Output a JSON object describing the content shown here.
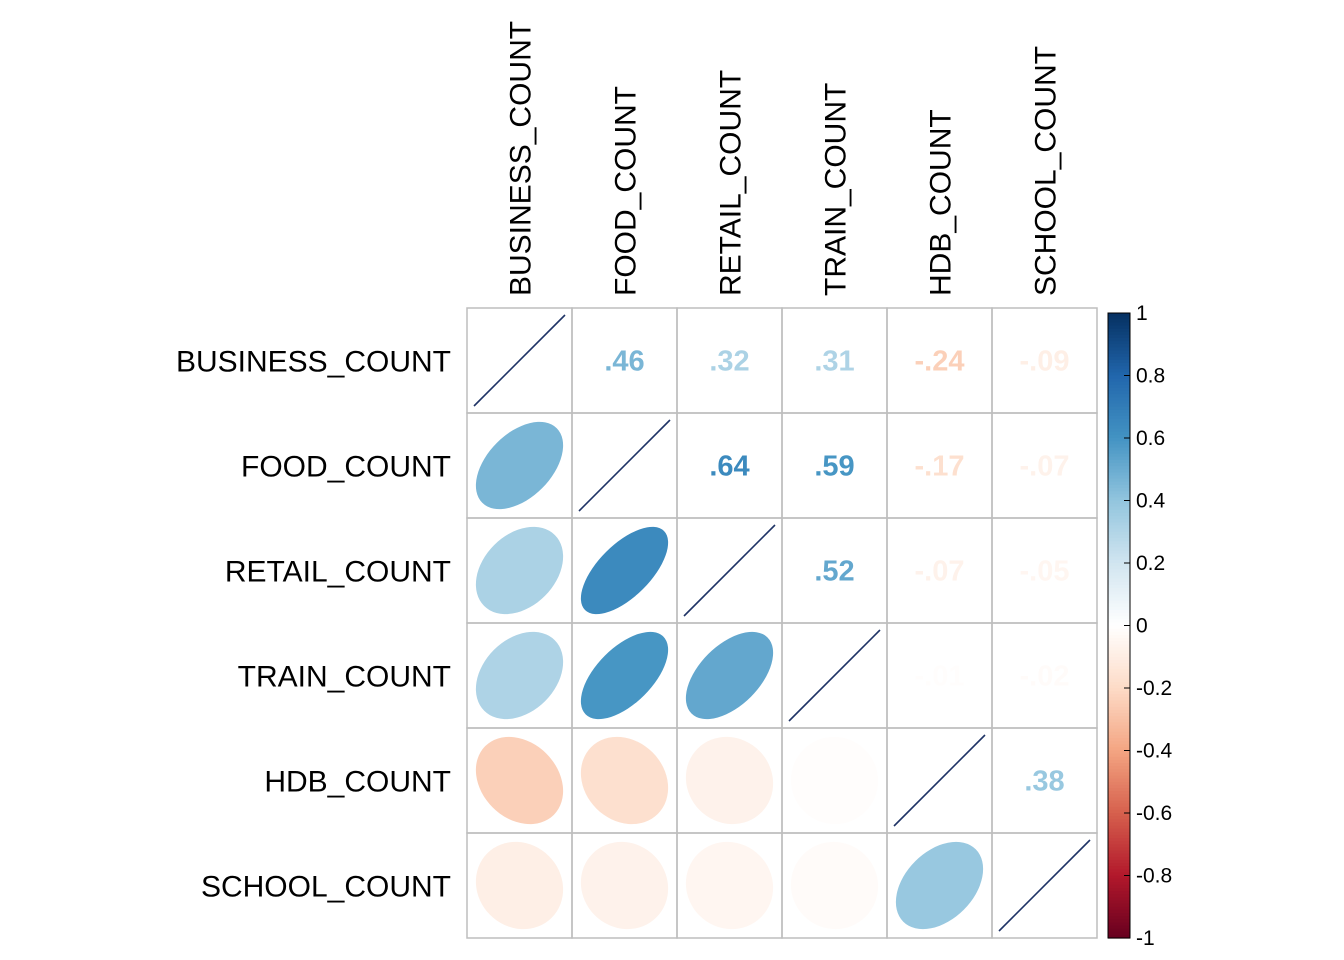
{
  "chart_data": {
    "type": "heatmap",
    "variables": [
      "BUSINESS_COUNT",
      "FOOD_COUNT",
      "RETAIL_COUNT",
      "TRAIN_COUNT",
      "HDB_COUNT",
      "SCHOOL_COUNT"
    ],
    "correlation_matrix": [
      [
        1.0,
        0.46,
        0.32,
        0.31,
        -0.24,
        -0.09
      ],
      [
        0.46,
        1.0,
        0.64,
        0.59,
        -0.17,
        -0.07
      ],
      [
        0.32,
        0.64,
        1.0,
        0.52,
        -0.07,
        -0.05
      ],
      [
        0.31,
        0.59,
        0.52,
        1.0,
        -0.01,
        -0.02
      ],
      [
        -0.24,
        -0.17,
        -0.07,
        -0.01,
        1.0,
        0.38
      ],
      [
        -0.09,
        -0.07,
        -0.05,
        -0.02,
        0.38,
        1.0
      ]
    ],
    "upper_triangle_method": "number",
    "lower_triangle_method": "ellipse",
    "colorbar": {
      "range": [
        -1,
        1
      ],
      "tick_values": [
        1,
        0.8,
        0.6,
        0.4,
        0.2,
        0,
        -0.2,
        -0.4,
        -0.6,
        -0.8,
        -1
      ],
      "tick_labels": [
        "1",
        "0.8",
        "0.6",
        "0.4",
        "0.2",
        "0",
        "-0.2",
        "-0.4",
        "-0.6",
        "-0.8",
        "-1"
      ]
    },
    "colors": {
      "positive": "#053061",
      "negative": "#67001F",
      "neutral": "#FFFFFF",
      "grid": "#BEBEBE",
      "diagonal_line": "#1F3366"
    }
  }
}
